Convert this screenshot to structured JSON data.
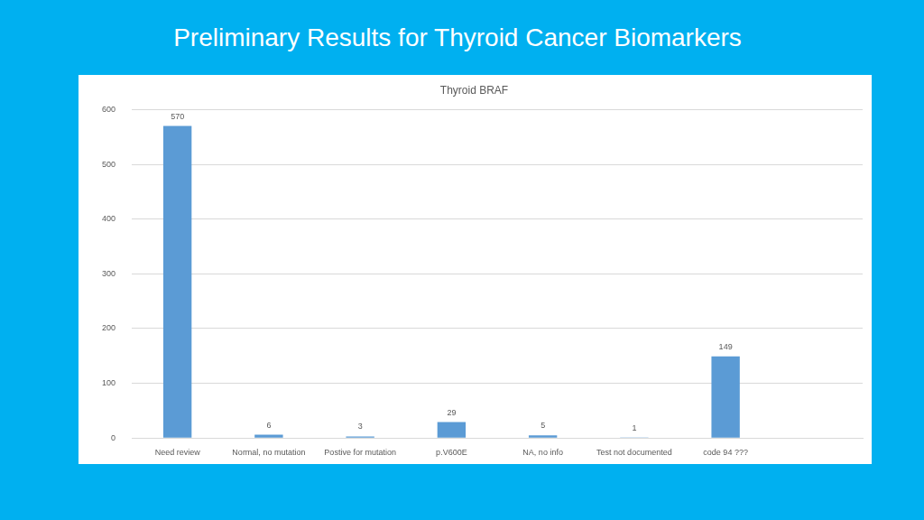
{
  "heading": "Preliminary Results for Thyroid Cancer Biomarkers",
  "chart_data": {
    "type": "bar",
    "title": "Thyroid BRAF",
    "categories": [
      "Need review",
      "Normal, no mutation",
      "Postive for mutation",
      "p.V600E",
      "NA, no info",
      "Test not documented",
      "code 94 ???",
      null
    ],
    "values": [
      570,
      6,
      3,
      29,
      5,
      1,
      149,
      null
    ],
    "color": "#5b9bd5",
    "ylim": [
      0,
      600
    ],
    "yticks": [
      0,
      100,
      200,
      300,
      400,
      500,
      600
    ],
    "grid": true,
    "data_labels": true
  }
}
